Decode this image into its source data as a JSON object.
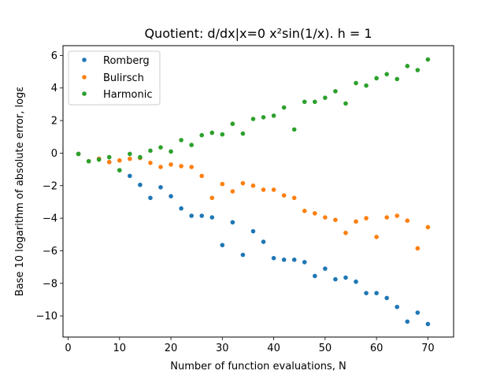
{
  "chart_data": {
    "type": "scatter",
    "title": "Quotient: d/dx|x=0 x²sin(1/x). h = 1",
    "xlabel": "Number of function evaluations, N",
    "ylabel": "Base 10 logarithm of absolute error, logε",
    "xlim": [
      -1,
      75
    ],
    "ylim": [
      -11.3,
      6.6
    ],
    "xticks": [
      0,
      10,
      20,
      30,
      40,
      50,
      60,
      70
    ],
    "yticks": [
      -10,
      -8,
      -6,
      -4,
      -2,
      0,
      2,
      4,
      6
    ],
    "legend_position": "top-left",
    "grid": false,
    "series": [
      {
        "name": "Romberg",
        "color": "#1f77b4",
        "x": [
          2,
          4,
          6,
          8,
          10,
          12,
          14,
          16,
          18,
          20,
          22,
          24,
          26,
          28,
          30,
          32,
          34,
          36,
          38,
          40,
          42,
          44,
          46,
          48,
          50,
          52,
          54,
          56,
          58,
          60,
          62,
          64,
          66,
          68,
          70
        ],
        "y": [
          -0.05,
          -0.5,
          -0.35,
          -0.55,
          -1.05,
          -1.4,
          -1.95,
          -2.75,
          -2.1,
          -2.65,
          -3.4,
          -3.85,
          -3.85,
          -3.95,
          -5.65,
          -4.25,
          -6.25,
          -4.8,
          -5.45,
          -6.45,
          -6.55,
          -6.55,
          -6.7,
          -7.55,
          -7.1,
          -7.75,
          -7.65,
          -7.9,
          -8.6,
          -8.6,
          -8.9,
          -9.45,
          -10.35,
          -9.8,
          -10.5
        ]
      },
      {
        "name": "Bulirsch",
        "color": "#ff7f0e",
        "x": [
          2,
          4,
          6,
          8,
          10,
          12,
          14,
          16,
          18,
          20,
          22,
          24,
          26,
          28,
          30,
          32,
          34,
          36,
          38,
          40,
          42,
          44,
          46,
          48,
          50,
          52,
          54,
          56,
          58,
          60,
          62,
          64,
          66,
          68,
          70
        ],
        "y": [
          -0.05,
          -0.5,
          -0.35,
          -0.55,
          -0.45,
          -0.35,
          -0.3,
          -0.6,
          -0.85,
          -0.7,
          -0.8,
          -0.85,
          -1.4,
          -2.75,
          -1.9,
          -2.35,
          -1.85,
          -2.0,
          -2.25,
          -2.25,
          -2.6,
          -2.75,
          -3.55,
          -3.7,
          -3.95,
          -4.1,
          -4.9,
          -4.2,
          -4.0,
          -5.15,
          -3.95,
          -3.85,
          -4.15,
          -5.85,
          -4.55
        ]
      },
      {
        "name": "Harmonic",
        "color": "#2ca02c",
        "x": [
          2,
          4,
          6,
          8,
          10,
          12,
          14,
          16,
          18,
          20,
          22,
          24,
          26,
          28,
          30,
          32,
          34,
          36,
          38,
          40,
          42,
          44,
          46,
          48,
          50,
          52,
          54,
          56,
          58,
          60,
          62,
          64,
          66,
          68,
          70
        ],
        "y": [
          -0.05,
          -0.5,
          -0.4,
          -0.25,
          -1.05,
          -0.05,
          -0.25,
          0.15,
          0.35,
          0.1,
          0.8,
          0.5,
          1.1,
          1.25,
          1.15,
          1.8,
          1.2,
          2.1,
          2.2,
          2.3,
          2.8,
          1.45,
          3.15,
          3.15,
          3.4,
          3.8,
          3.05,
          4.3,
          4.15,
          4.6,
          4.85,
          4.55,
          5.35,
          5.1,
          5.75
        ]
      }
    ]
  }
}
